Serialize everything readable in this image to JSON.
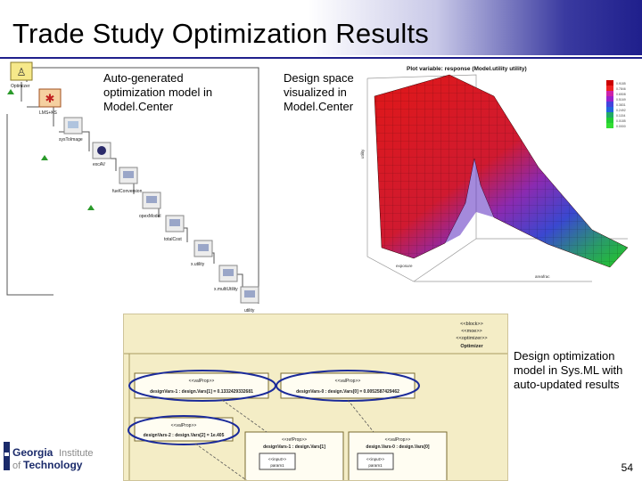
{
  "slide": {
    "title": "Trade Study Optimization Results",
    "page_number": "54"
  },
  "callouts": {
    "modelcenter_line1": "Auto-generated",
    "modelcenter_line2": "optimization model in",
    "modelcenter_line3": "Model.Center",
    "design_space_line1": "Design space",
    "design_space_line2": "visualized in",
    "design_space_line3": "Model.Center",
    "sysml_line1": "Design optimization",
    "sysml_line2": "model in Sys.ML with",
    "sysml_line3": "auto-updated results"
  },
  "modelcenter": {
    "nodes": [
      "Optimizer",
      "LMS+KS",
      "sysToImage",
      "excAV",
      "fuelConversion",
      "opexModel",
      "totalCost",
      "x.utility",
      "x.multiUtility",
      "utility"
    ]
  },
  "plot": {
    "title": "Plot variable: response (Model.utility utility)",
    "ylabel": "utility",
    "xlabel_left": "exposure",
    "xlabel_right": "areafrac",
    "legend_colors": [
      "#cc0000",
      "#ee2222",
      "#cc22aa",
      "#9922cc",
      "#4444dd",
      "#2266dd",
      "#22aa66",
      "#22cc33",
      "#33dd33"
    ]
  },
  "sysml": {
    "stereotypes": [
      "<<block>>",
      "<<moe>>",
      "<<optimizer>>"
    ],
    "block_name": "Optimizer",
    "top_left_header": "<<valProp>>",
    "top_left_value": "designVars-1 : design.Vars[1] = 0.1332429332681",
    "top_right_header": "<<valProp>>",
    "top_right_value": "designVars-0 : design.Vars[0] = 0.0052587429462",
    "left_header": "<<valProp>>",
    "left_value": "designVars-2 : design.Vars[2] = 1e.405",
    "mid_header": "<<refProp>>",
    "mid_value": "designVars-1 : design.Vars[1]",
    "right_header": "<<valProp>>",
    "right_value": "design.Vars-0 : design.Vars[0]",
    "port_header": "<<input>>",
    "port_value": "param1"
  },
  "logo": {
    "line1": "Georgia",
    "line1b": "Institute",
    "line2": "of Technology"
  }
}
